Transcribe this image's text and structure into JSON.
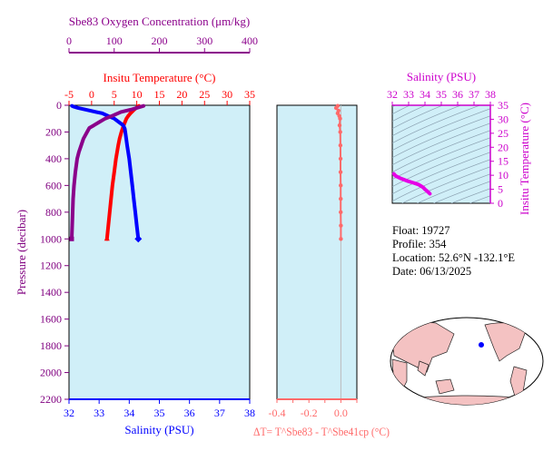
{
  "colors": {
    "oxygen": "#8b008b",
    "temperature": "#ff0000",
    "salinity": "#0000ff",
    "pressure": "#800080",
    "delta_t": "#ff6a6a",
    "ts_axis": "#cc00cc",
    "ts_curve": "#e600e6",
    "panel_bg": "#d0eff8",
    "map_land": "#f4c2c2",
    "map_ocean": "#ffffff"
  },
  "info": {
    "float": "Float:  19727",
    "profile": "Profile:  354",
    "location": "Location:  52.6°N  -132.1°E",
    "date": "Date:  06/13/2025"
  },
  "chart_data": [
    {
      "type": "line",
      "panel": "profile",
      "y_axis": {
        "label": "Pressure (decibar)",
        "ylim": [
          2200,
          0
        ],
        "ticks": [
          "0",
          "200",
          "400",
          "600",
          "800",
          "1000",
          "1200",
          "1400",
          "1600",
          "1800",
          "2000",
          "2200"
        ]
      },
      "axes": {
        "oxygen": {
          "label": "Sbe83 Oxygen Concentration (μm/kg)",
          "xlim": [
            0,
            400
          ],
          "ticks": [
            "0",
            "100",
            "200",
            "300",
            "400"
          ]
        },
        "temperature": {
          "label": "Insitu Temperature (°C)",
          "xlim": [
            -5,
            35
          ],
          "ticks": [
            "-5",
            "0",
            "5",
            "10",
            "15",
            "20",
            "25",
            "30",
            "35"
          ]
        },
        "salinity": {
          "label": "Salinity (PSU)",
          "xlim": [
            32,
            38
          ],
          "ticks": [
            "32",
            "33",
            "34",
            "35",
            "36",
            "37",
            "38"
          ]
        }
      },
      "series": [
        {
          "name": "Insitu Temperature",
          "axis": "temperature",
          "pressure": [
            5,
            10,
            20,
            40,
            60,
            80,
            100,
            150,
            200,
            250,
            300,
            400,
            500,
            600,
            700,
            800,
            900,
            1000
          ],
          "values": [
            10.5,
            10.3,
            9.9,
            9.2,
            8.6,
            8.1,
            7.7,
            7.1,
            6.6,
            6.2,
            5.9,
            5.4,
            5.0,
            4.6,
            4.3,
            4.0,
            3.7,
            3.4
          ]
        },
        {
          "name": "Salinity",
          "axis": "salinity",
          "pressure": [
            5,
            10,
            20,
            30,
            40,
            50,
            60,
            80,
            100,
            125,
            150,
            175,
            200,
            250,
            300,
            400,
            500,
            600,
            700,
            800,
            900,
            1000
          ],
          "values": [
            32.1,
            32.15,
            32.3,
            32.5,
            32.7,
            32.9,
            33.1,
            33.3,
            33.5,
            33.65,
            33.8,
            33.85,
            33.87,
            33.9,
            33.93,
            34.0,
            34.05,
            34.1,
            34.15,
            34.2,
            34.25,
            34.3
          ]
        },
        {
          "name": "Oxygen Concentration",
          "axis": "oxygen",
          "pressure": [
            5,
            15,
            30,
            50,
            80,
            100,
            130,
            150,
            170,
            200,
            250,
            300,
            350,
            400,
            500,
            600,
            700,
            800,
            900,
            1000
          ],
          "values": [
            165,
            155,
            140,
            115,
            95,
            80,
            65,
            55,
            45,
            40,
            32,
            27,
            22,
            18,
            14,
            11,
            9,
            8,
            7,
            6
          ]
        }
      ]
    },
    {
      "type": "scatter",
      "panel": "delta_t",
      "xlabel": "ΔT= T^Sbe83 - T^Sbe41cp (°C)",
      "xlim": [
        -0.4,
        0.1
      ],
      "ticks": [
        "-0.4",
        "-0.2",
        "0.0"
      ],
      "ylim": [
        2200,
        0
      ],
      "pressure": [
        5,
        20,
        40,
        60,
        80,
        100,
        150,
        200,
        300,
        400,
        500,
        600,
        700,
        800,
        900,
        1000
      ],
      "values": [
        -0.02,
        -0.03,
        -0.015,
        -0.02,
        -0.01,
        -0.005,
        -0.008,
        -0.004,
        -0.003,
        -0.002,
        -0.002,
        -0.001,
        -0.001,
        -0.001,
        0.0,
        0.0
      ]
    },
    {
      "type": "line",
      "panel": "ts_diagram",
      "xlabel": "Salinity (PSU)",
      "ylabel": "Insitu Temperature (°C)",
      "xlim": [
        32,
        38
      ],
      "ylim": [
        0,
        35
      ],
      "xticks": [
        "32",
        "33",
        "34",
        "35",
        "36",
        "37",
        "38"
      ],
      "yticks": [
        "0",
        "5",
        "10",
        "15",
        "20",
        "25",
        "30",
        "35"
      ],
      "x": [
        32.1,
        32.2,
        32.5,
        32.9,
        33.3,
        33.6,
        33.8,
        33.9,
        34.0,
        34.1,
        34.2,
        34.3
      ],
      "y": [
        10.5,
        9.8,
        8.9,
        8.0,
        7.3,
        6.7,
        6.0,
        5.6,
        5.0,
        4.5,
        4.0,
        3.4
      ]
    }
  ]
}
